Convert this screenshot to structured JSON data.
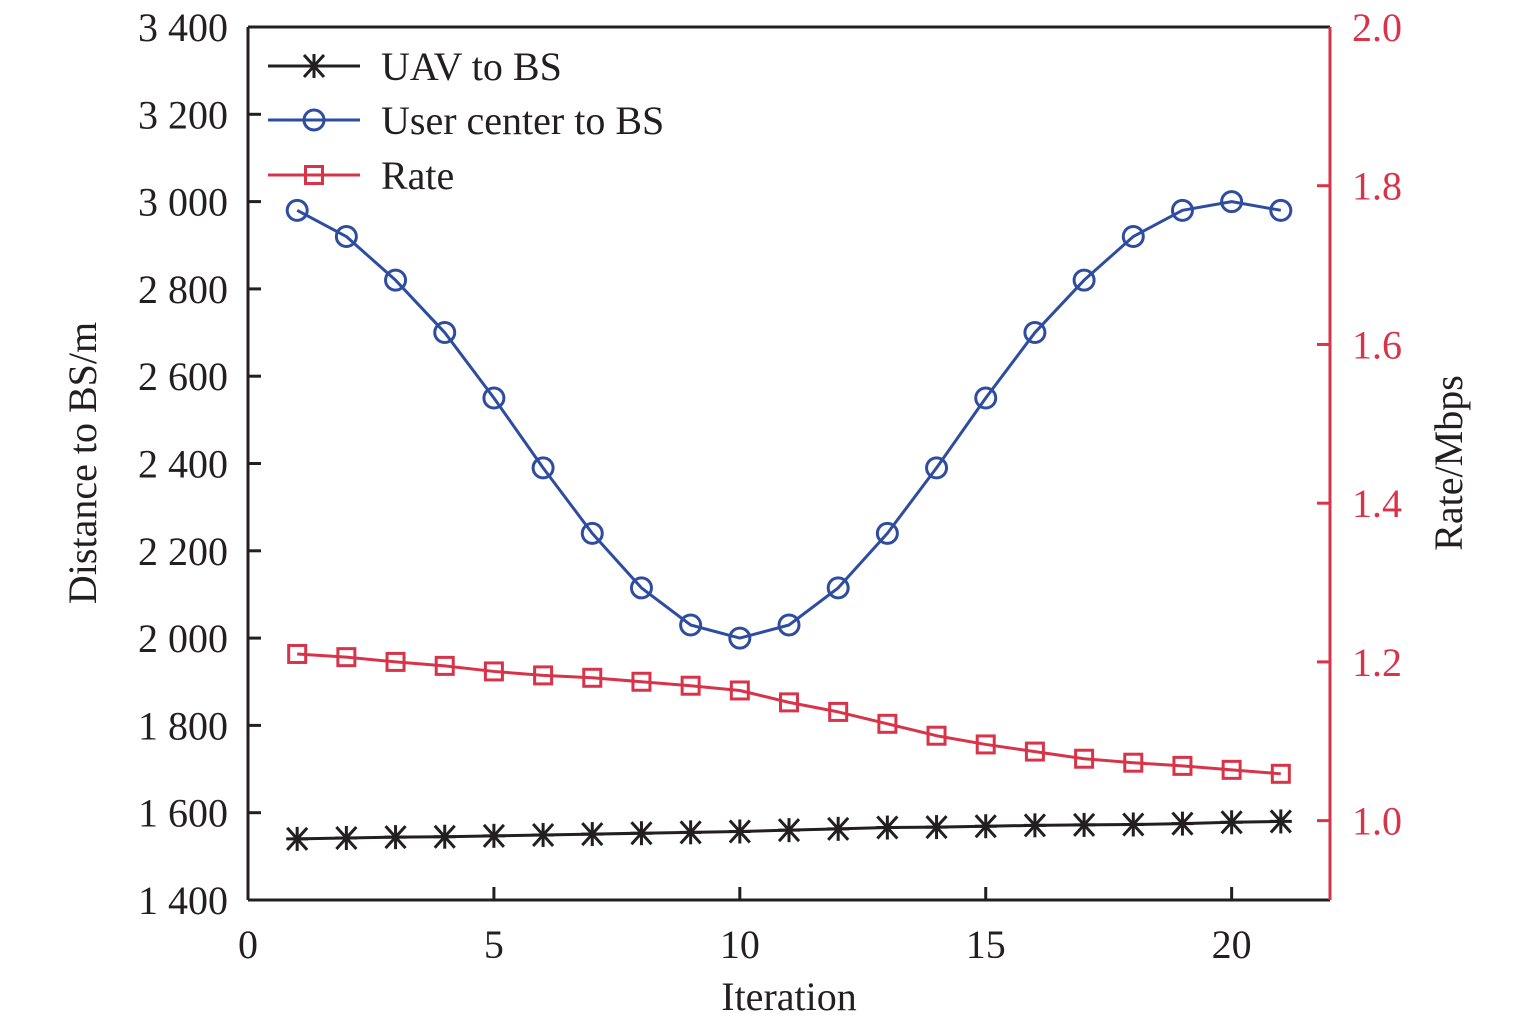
{
  "chart_data": {
    "type": "line",
    "title": "",
    "xlabel": "Iteration",
    "ylabel": "Distance to BS/m",
    "y2label": "Rate/Mbps",
    "xlim": [
      0,
      22
    ],
    "ylim": [
      1400,
      3400
    ],
    "y2lim": [
      0.9,
      2.0
    ],
    "x_ticks": [
      0,
      5,
      10,
      15,
      20
    ],
    "x_tick_labels": [
      "0",
      "5",
      "10",
      "15",
      "20"
    ],
    "y_ticks": [
      1400,
      1600,
      1800,
      2000,
      2200,
      2400,
      2600,
      2800,
      3000,
      3200,
      3400
    ],
    "y_tick_labels": [
      "1 400",
      "1 600",
      "1 800",
      "2 000",
      "2 200",
      "2 400",
      "2 600",
      "2 800",
      "3 000",
      "3 200",
      "3 400"
    ],
    "y2_ticks": [
      1.0,
      1.2,
      1.4,
      1.6,
      1.8,
      2.0
    ],
    "y2_tick_labels": [
      "1.0",
      "1.2",
      "1.4",
      "1.6",
      "1.8",
      "2.0"
    ],
    "grid": false,
    "legend_position": "top-left",
    "x": [
      1,
      2,
      3,
      4,
      5,
      6,
      7,
      8,
      9,
      10,
      11,
      12,
      13,
      14,
      15,
      16,
      17,
      18,
      19,
      20,
      21
    ],
    "series": [
      {
        "name": "UAV to BS",
        "axis": "left",
        "marker": "asterisk",
        "color": "#231f20",
        "values": [
          1540,
          1542,
          1544,
          1545,
          1547,
          1549,
          1551,
          1553,
          1555,
          1557,
          1560,
          1563,
          1566,
          1567,
          1569,
          1571,
          1572,
          1573,
          1575,
          1578,
          1580
        ]
      },
      {
        "name": "User center to BS",
        "axis": "left",
        "marker": "circle",
        "color": "#2e4da0",
        "values": [
          2980,
          2920,
          2820,
          2700,
          2550,
          2390,
          2240,
          2115,
          2030,
          2000,
          2030,
          2115,
          2240,
          2390,
          2550,
          2700,
          2820,
          2920,
          2980,
          3000,
          2980
        ]
      },
      {
        "name": "Rate",
        "axis": "right",
        "marker": "square",
        "color": "#d7344a",
        "values": [
          1.21,
          1.206,
          1.2,
          1.195,
          1.188,
          1.183,
          1.18,
          1.175,
          1.17,
          1.164,
          1.149,
          1.137,
          1.122,
          1.107,
          1.096,
          1.087,
          1.078,
          1.073,
          1.069,
          1.064,
          1.059
        ]
      }
    ]
  }
}
